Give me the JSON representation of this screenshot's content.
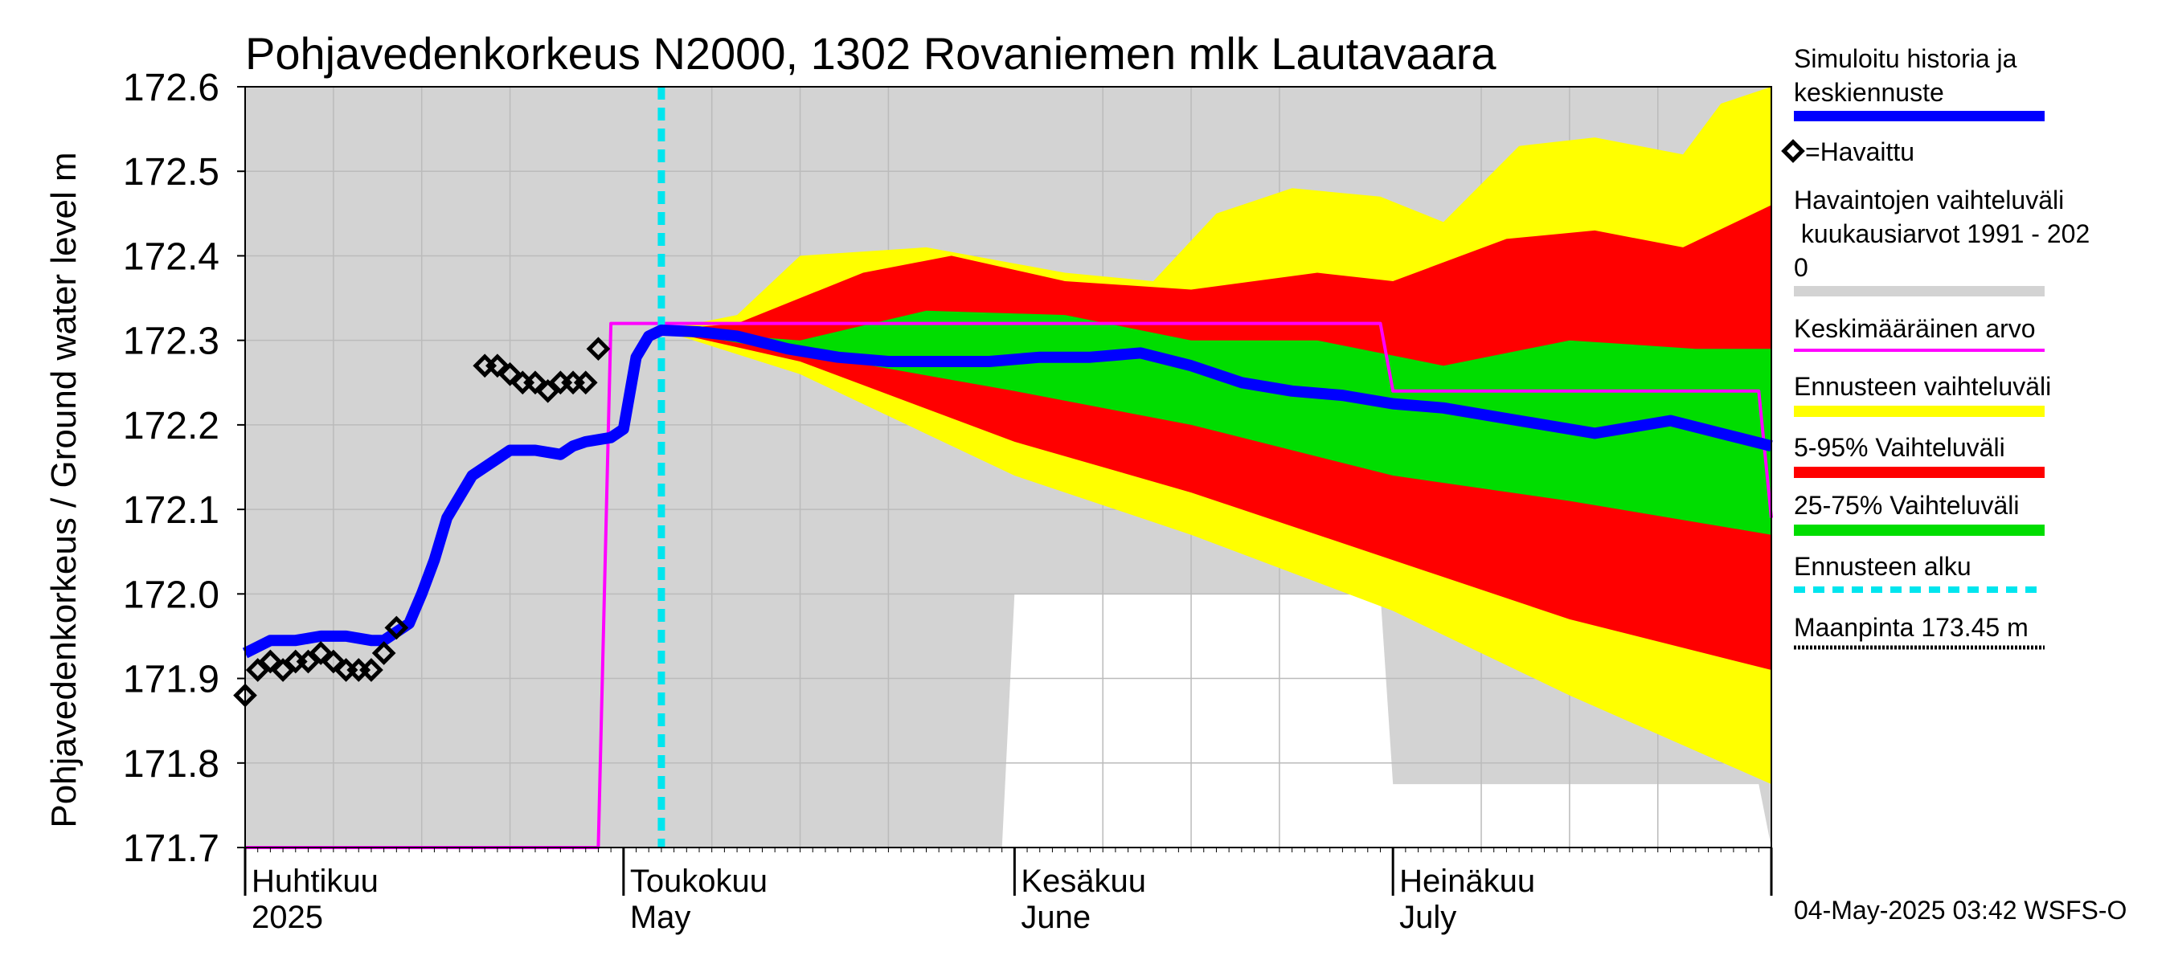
{
  "chart_data": {
    "type": "area",
    "title": "Pohjavedenkorkeus N2000, 1302 Rovaniemen mlk Lautavaara",
    "ylabel": "Pohjavedenkorkeus / Ground water level   m",
    "ylim": [
      171.7,
      172.6
    ],
    "yticks": [
      "172.6",
      "172.5",
      "172.4",
      "172.3",
      "172.2",
      "172.1",
      "172.0",
      "171.9",
      "171.8",
      "171.7"
    ],
    "xlim": [
      "2025-04-01",
      "2025-07-31"
    ],
    "grid": true,
    "months": [
      {
        "label": "Huhtikuu",
        "sub": "2025",
        "date": "2025-04-01"
      },
      {
        "label": "Toukokuu",
        "sub": "May",
        "date": "2025-05-01"
      },
      {
        "label": "Kesäkuu",
        "sub": "June",
        "date": "2025-06-01"
      },
      {
        "label": "Heinäkuu",
        "sub": "July",
        "date": "2025-07-01"
      }
    ],
    "forecast_start": "2025-05-04",
    "ground_level_label": "Maanpinta 173.45 m",
    "legend": [
      {
        "label": "Simuloitu historia ja keskiennuste",
        "color": "#0000ff"
      },
      {
        "label": "=Havaittu",
        "color": "#000000"
      },
      {
        "label": "Havaintojen vaihteluväli kuukausiarvot 1991 - 2020",
        "color": "#d3d3d3"
      },
      {
        "label": "Keskimääräinen arvo",
        "color": "#ff00ff"
      },
      {
        "label": "Ennusteen vaihteluväli",
        "color": "#ffff00"
      },
      {
        "label": "5-95% Vaihteluväli",
        "color": "#ff0000"
      },
      {
        "label": "25-75% Vaihteluväli",
        "color": "#00dd00"
      },
      {
        "label": "Ennusteen alku",
        "color": "#00e5ee"
      },
      {
        "label": "Maanpinta 173.45 m",
        "color": "#000000"
      }
    ],
    "observed": [
      {
        "x": "2025-04-01",
        "y": 171.88
      },
      {
        "x": "2025-04-02",
        "y": 171.91
      },
      {
        "x": "2025-04-03",
        "y": 171.92
      },
      {
        "x": "2025-04-04",
        "y": 171.91
      },
      {
        "x": "2025-04-05",
        "y": 171.92
      },
      {
        "x": "2025-04-06",
        "y": 171.92
      },
      {
        "x": "2025-04-07",
        "y": 171.93
      },
      {
        "x": "2025-04-08",
        "y": 171.92
      },
      {
        "x": "2025-04-09",
        "y": 171.91
      },
      {
        "x": "2025-04-10",
        "y": 171.91
      },
      {
        "x": "2025-04-11",
        "y": 171.91
      },
      {
        "x": "2025-04-12",
        "y": 171.93
      },
      {
        "x": "2025-04-13",
        "y": 171.96
      },
      {
        "x": "2025-04-20",
        "y": 172.27
      },
      {
        "x": "2025-04-21",
        "y": 172.27
      },
      {
        "x": "2025-04-22",
        "y": 172.26
      },
      {
        "x": "2025-04-23",
        "y": 172.25
      },
      {
        "x": "2025-04-24",
        "y": 172.25
      },
      {
        "x": "2025-04-25",
        "y": 172.24
      },
      {
        "x": "2025-04-26",
        "y": 172.25
      },
      {
        "x": "2025-04-27",
        "y": 172.25
      },
      {
        "x": "2025-04-28",
        "y": 172.25
      },
      {
        "x": "2025-04-29",
        "y": 172.29
      }
    ],
    "simulated_median": [
      {
        "x": "2025-04-01",
        "y": 171.93
      },
      {
        "x": "2025-04-03",
        "y": 171.945
      },
      {
        "x": "2025-04-05",
        "y": 171.945
      },
      {
        "x": "2025-04-07",
        "y": 171.95
      },
      {
        "x": "2025-04-09",
        "y": 171.95
      },
      {
        "x": "2025-04-11",
        "y": 171.945
      },
      {
        "x": "2025-04-12",
        "y": 171.945
      },
      {
        "x": "2025-04-14",
        "y": 171.965
      },
      {
        "x": "2025-04-15",
        "y": 172.0
      },
      {
        "x": "2025-04-16",
        "y": 172.04
      },
      {
        "x": "2025-04-17",
        "y": 172.09
      },
      {
        "x": "2025-04-19",
        "y": 172.14
      },
      {
        "x": "2025-04-21",
        "y": 172.16
      },
      {
        "x": "2025-04-22",
        "y": 172.17
      },
      {
        "x": "2025-04-24",
        "y": 172.17
      },
      {
        "x": "2025-04-26",
        "y": 172.165
      },
      {
        "x": "2025-04-27",
        "y": 172.175
      },
      {
        "x": "2025-04-28",
        "y": 172.18
      },
      {
        "x": "2025-04-30",
        "y": 172.185
      },
      {
        "x": "2025-05-01",
        "y": 172.195
      },
      {
        "x": "2025-05-02",
        "y": 172.28
      },
      {
        "x": "2025-05-03",
        "y": 172.305
      },
      {
        "x": "2025-05-04",
        "y": 172.312
      },
      {
        "x": "2025-05-07",
        "y": 172.31
      },
      {
        "x": "2025-05-10",
        "y": 172.305
      },
      {
        "x": "2025-05-14",
        "y": 172.29
      },
      {
        "x": "2025-05-18",
        "y": 172.28
      },
      {
        "x": "2025-05-22",
        "y": 172.275
      },
      {
        "x": "2025-05-26",
        "y": 172.275
      },
      {
        "x": "2025-05-30",
        "y": 172.275
      },
      {
        "x": "2025-06-03",
        "y": 172.28
      },
      {
        "x": "2025-06-07",
        "y": 172.28
      },
      {
        "x": "2025-06-11",
        "y": 172.285
      },
      {
        "x": "2025-06-15",
        "y": 172.27
      },
      {
        "x": "2025-06-19",
        "y": 172.25
      },
      {
        "x": "2025-06-23",
        "y": 172.24
      },
      {
        "x": "2025-06-27",
        "y": 172.235
      },
      {
        "x": "2025-07-01",
        "y": 172.225
      },
      {
        "x": "2025-07-05",
        "y": 172.22
      },
      {
        "x": "2025-07-09",
        "y": 172.21
      },
      {
        "x": "2025-07-13",
        "y": 172.2
      },
      {
        "x": "2025-07-17",
        "y": 172.19
      },
      {
        "x": "2025-07-21",
        "y": 172.2
      },
      {
        "x": "2025-07-23",
        "y": 172.205
      },
      {
        "x": "2025-07-27",
        "y": 172.19
      },
      {
        "x": "2025-07-31",
        "y": 172.175
      }
    ],
    "mean_value": [
      {
        "x": "2025-04-01",
        "y": 171.7
      },
      {
        "x": "2025-04-29",
        "y": 171.7
      },
      {
        "x": "2025-04-30",
        "y": 172.32
      },
      {
        "x": "2025-06-30",
        "y": 172.32
      },
      {
        "x": "2025-07-01",
        "y": 172.24
      },
      {
        "x": "2025-07-30",
        "y": 172.24
      },
      {
        "x": "2025-07-31",
        "y": 172.09
      }
    ],
    "history_range": {
      "min": [
        {
          "x": "2025-04-01",
          "y": 171.7
        },
        {
          "x": "2025-05-31",
          "y": 171.7
        },
        {
          "x": "2025-06-01",
          "y": 172.0
        },
        {
          "x": "2025-06-30",
          "y": 172.0
        },
        {
          "x": "2025-07-01",
          "y": 171.775
        },
        {
          "x": "2025-07-30",
          "y": 171.775
        },
        {
          "x": "2025-07-31",
          "y": 171.7
        }
      ],
      "max": [
        {
          "x": "2025-04-01",
          "y": 172.6
        },
        {
          "x": "2025-07-31",
          "y": 172.6
        }
      ]
    },
    "forecast_range": {
      "min": [
        {
          "x": "2025-05-04",
          "y": 172.312
        },
        {
          "x": "2025-05-15",
          "y": 172.26
        },
        {
          "x": "2025-06-01",
          "y": 172.14
        },
        {
          "x": "2025-06-15",
          "y": 172.07
        },
        {
          "x": "2025-07-01",
          "y": 171.98
        },
        {
          "x": "2025-07-15",
          "y": 171.88
        },
        {
          "x": "2025-07-31",
          "y": 171.775
        }
      ],
      "max": [
        {
          "x": "2025-05-04",
          "y": 172.312
        },
        {
          "x": "2025-05-10",
          "y": 172.33
        },
        {
          "x": "2025-05-15",
          "y": 172.4
        },
        {
          "x": "2025-05-25",
          "y": 172.41
        },
        {
          "x": "2025-06-05",
          "y": 172.38
        },
        {
          "x": "2025-06-12",
          "y": 172.37
        },
        {
          "x": "2025-06-17",
          "y": 172.45
        },
        {
          "x": "2025-06-23",
          "y": 172.48
        },
        {
          "x": "2025-06-30",
          "y": 172.47
        },
        {
          "x": "2025-07-05",
          "y": 172.44
        },
        {
          "x": "2025-07-11",
          "y": 172.53
        },
        {
          "x": "2025-07-17",
          "y": 172.54
        },
        {
          "x": "2025-07-24",
          "y": 172.52
        },
        {
          "x": "2025-07-27",
          "y": 172.58
        },
        {
          "x": "2025-07-31",
          "y": 172.6
        }
      ]
    },
    "p5_95": {
      "low": [
        {
          "x": "2025-05-04",
          "y": 172.312
        },
        {
          "x": "2025-05-15",
          "y": 172.275
        },
        {
          "x": "2025-06-01",
          "y": 172.18
        },
        {
          "x": "2025-06-15",
          "y": 172.12
        },
        {
          "x": "2025-07-01",
          "y": 172.04
        },
        {
          "x": "2025-07-15",
          "y": 171.97
        },
        {
          "x": "2025-07-31",
          "y": 171.91
        }
      ],
      "high": [
        {
          "x": "2025-05-04",
          "y": 172.312
        },
        {
          "x": "2025-05-10",
          "y": 172.32
        },
        {
          "x": "2025-05-20",
          "y": 172.38
        },
        {
          "x": "2025-05-27",
          "y": 172.4
        },
        {
          "x": "2025-06-05",
          "y": 172.37
        },
        {
          "x": "2025-06-15",
          "y": 172.36
        },
        {
          "x": "2025-06-25",
          "y": 172.38
        },
        {
          "x": "2025-07-01",
          "y": 172.37
        },
        {
          "x": "2025-07-10",
          "y": 172.42
        },
        {
          "x": "2025-07-17",
          "y": 172.43
        },
        {
          "x": "2025-07-24",
          "y": 172.41
        },
        {
          "x": "2025-07-31",
          "y": 172.46
        }
      ]
    },
    "p25_75": {
      "low": [
        {
          "x": "2025-05-04",
          "y": 172.312
        },
        {
          "x": "2025-05-15",
          "y": 172.285
        },
        {
          "x": "2025-06-01",
          "y": 172.24
        },
        {
          "x": "2025-06-15",
          "y": 172.2
        },
        {
          "x": "2025-07-01",
          "y": 172.14
        },
        {
          "x": "2025-07-15",
          "y": 172.11
        },
        {
          "x": "2025-07-31",
          "y": 172.07
        }
      ],
      "high": [
        {
          "x": "2025-05-04",
          "y": 172.312
        },
        {
          "x": "2025-05-15",
          "y": 172.3
        },
        {
          "x": "2025-05-25",
          "y": 172.335
        },
        {
          "x": "2025-06-05",
          "y": 172.33
        },
        {
          "x": "2025-06-15",
          "y": 172.3
        },
        {
          "x": "2025-06-25",
          "y": 172.3
        },
        {
          "x": "2025-07-05",
          "y": 172.27
        },
        {
          "x": "2025-07-15",
          "y": 172.3
        },
        {
          "x": "2025-07-25",
          "y": 172.29
        },
        {
          "x": "2025-07-31",
          "y": 172.29
        }
      ]
    }
  },
  "legend_text": {
    "simulated": [
      "Simuloitu historia ja",
      "keskiennuste"
    ],
    "observed": "=Havaittu",
    "history_range": [
      "Havaintojen vaihteluväli",
      " kuukausiarvot 1991 - 202",
      "0"
    ],
    "mean": "Keskimääräinen arvo",
    "forecast_range": "Ennusteen vaihteluväli",
    "p5_95": "5-95% Vaihteluväli",
    "p25_75": "25-75% Vaihteluväli",
    "forecast_start": "Ennusteen alku",
    "ground": "Maanpinta 173.45 m"
  },
  "timestamp": "04-May-2025 03:42 WSFS-O"
}
